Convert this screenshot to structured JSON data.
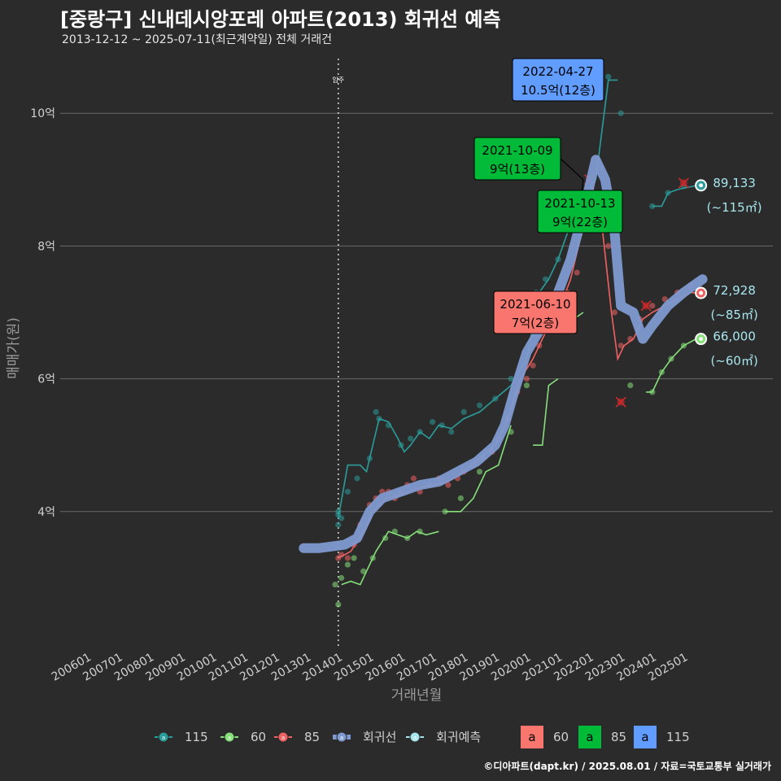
{
  "title": "[중랑구] 신내데시앙포레 아파트(2013) 회귀선 예측",
  "subtitle": "2013-12-12 ~ 2025-07-11(최근계약일) 전체 거래건",
  "credit": "©디아파트(dapt.kr) / 2025.08.01 / 자료=국토교통부 실거래가",
  "colors": {
    "background": "#2b2b2b",
    "s115": "#2a9d9a",
    "s60": "#86e07a",
    "s85": "#f06262",
    "regression": "#7f9ad0",
    "forecast": "#a8e6ee",
    "box60": "#f8766d",
    "box85": "#00ba38",
    "box115": "#619cff"
  },
  "chart_data": {
    "type": "scatter",
    "title": "[중랑구] 신내데시앙포레 아파트(2013) 회귀선 예측",
    "xlabel": "거래년월",
    "ylabel": "매매가(원)",
    "x_tick_labels": [
      "200601",
      "200701",
      "200801",
      "200901",
      "201001",
      "201101",
      "201201",
      "201301",
      "201401",
      "201501",
      "201601",
      "201701",
      "201801",
      "201901",
      "202001",
      "202101",
      "202201",
      "202301",
      "202401",
      "202501"
    ],
    "y_tick_labels": [
      "4억",
      "6억",
      "8억",
      "10억"
    ],
    "y_ticks_value": [
      4,
      6,
      8,
      10
    ],
    "ylim_eok": [
      2,
      10.8
    ],
    "xlim_year": [
      2005.8,
      2026.3
    ],
    "vline": {
      "x_year": 2014.0,
      "label": "입주"
    },
    "grid": true,
    "series": [
      {
        "name": "115",
        "key": "s115",
        "points": [
          [
            2014.0,
            3.8
          ],
          [
            2014.0,
            3.95
          ],
          [
            2014.0,
            4.0
          ],
          [
            2014.1,
            3.9
          ],
          [
            2014.3,
            4.3
          ],
          [
            2014.6,
            4.5
          ],
          [
            2015.0,
            4.8
          ],
          [
            2015.2,
            5.5
          ],
          [
            2015.3,
            5.4
          ],
          [
            2015.6,
            5.3
          ],
          [
            2016.0,
            5.0
          ],
          [
            2016.3,
            5.1
          ],
          [
            2016.6,
            5.2
          ],
          [
            2017.0,
            5.35
          ],
          [
            2017.3,
            5.3
          ],
          [
            2017.6,
            5.2
          ],
          [
            2018.0,
            5.5
          ],
          [
            2018.5,
            5.6
          ],
          [
            2019.0,
            5.7
          ],
          [
            2019.5,
            6.0
          ],
          [
            2020.0,
            6.8
          ],
          [
            2020.3,
            7.3
          ],
          [
            2020.6,
            7.5
          ],
          [
            2021.0,
            7.8
          ],
          [
            2021.4,
            8.3
          ],
          [
            2021.7,
            8.6
          ],
          [
            2022.0,
            9.0
          ],
          [
            2022.3,
            10.5
          ],
          [
            2022.6,
            10.55
          ],
          [
            2023.0,
            10.0
          ],
          [
            2024.0,
            8.6
          ],
          [
            2024.5,
            8.8
          ],
          [
            2025.0,
            8.9
          ]
        ],
        "line": [
          [
            2014.0,
            3.9
          ],
          [
            2014.3,
            4.7
          ],
          [
            2014.7,
            4.7
          ],
          [
            2014.9,
            4.6
          ],
          [
            2015.3,
            5.4
          ],
          [
            2015.6,
            5.35
          ],
          [
            2015.9,
            5.1
          ],
          [
            2016.1,
            4.9
          ],
          [
            2016.3,
            5.0
          ],
          [
            2016.6,
            5.2
          ],
          [
            2016.9,
            5.1
          ],
          [
            2017.2,
            5.3
          ],
          [
            2017.6,
            5.25
          ],
          [
            2018.0,
            5.4
          ],
          [
            2018.5,
            5.5
          ],
          [
            2019.0,
            5.7
          ],
          [
            2019.5,
            5.9
          ],
          [
            2020.0,
            6.3
          ],
          [
            2020.4,
            7.3
          ],
          [
            2020.7,
            7.5
          ],
          [
            2021.0,
            7.8
          ],
          [
            2021.3,
            8.2
          ],
          [
            2021.6,
            8.5
          ],
          [
            2021.9,
            8.8
          ],
          [
            2022.2,
            9.0
          ],
          [
            2022.6,
            10.5
          ],
          [
            2022.9,
            10.5
          ]
        ],
        "line2": [
          [
            2024.0,
            8.6
          ],
          [
            2024.3,
            8.6
          ],
          [
            2024.5,
            8.8
          ],
          [
            2024.8,
            8.85
          ],
          [
            2025.4,
            8.91
          ]
        ]
      },
      {
        "name": "60",
        "key": "s60",
        "points": [
          [
            2013.9,
            2.9
          ],
          [
            2014.0,
            2.6
          ],
          [
            2014.1,
            3.0
          ],
          [
            2014.3,
            3.2
          ],
          [
            2014.5,
            3.3
          ],
          [
            2014.8,
            3.1
          ],
          [
            2015.1,
            3.3
          ],
          [
            2015.5,
            3.6
          ],
          [
            2015.8,
            3.7
          ],
          [
            2016.2,
            3.6
          ],
          [
            2016.6,
            3.7
          ],
          [
            2017.4,
            4.0
          ],
          [
            2017.9,
            4.2
          ],
          [
            2018.5,
            4.6
          ],
          [
            2019.5,
            5.2
          ],
          [
            2020.0,
            5.9
          ],
          [
            2021.0,
            6.9
          ],
          [
            2023.3,
            5.9
          ],
          [
            2024.0,
            5.8
          ],
          [
            2024.3,
            6.1
          ],
          [
            2024.6,
            6.3
          ],
          [
            2025.0,
            6.5
          ]
        ],
        "line": [
          [
            2014.1,
            2.9
          ],
          [
            2014.4,
            2.95
          ],
          [
            2014.7,
            2.9
          ],
          [
            2014.9,
            3.1
          ],
          [
            2015.2,
            3.4
          ],
          [
            2015.6,
            3.7
          ],
          [
            2015.9,
            3.65
          ],
          [
            2016.2,
            3.6
          ],
          [
            2016.5,
            3.7
          ],
          [
            2016.8,
            3.65
          ],
          [
            2017.2,
            3.7
          ]
        ],
        "line3": [
          [
            2017.4,
            4.0
          ],
          [
            2017.9,
            4.0
          ],
          [
            2018.3,
            4.2
          ],
          [
            2018.7,
            4.6
          ],
          [
            2019.1,
            4.7
          ],
          [
            2019.5,
            5.3
          ]
        ],
        "line4": [
          [
            2020.2,
            5.0
          ],
          [
            2020.5,
            5.0
          ],
          [
            2020.7,
            5.9
          ],
          [
            2021.0,
            6.0
          ]
        ],
        "line5": [
          [
            2021.0,
            6.8
          ],
          [
            2021.5,
            6.9
          ],
          [
            2021.8,
            7.0
          ]
        ],
        "line2": [
          [
            2023.8,
            5.8
          ],
          [
            2024.0,
            5.8
          ],
          [
            2024.3,
            6.1
          ],
          [
            2024.6,
            6.3
          ],
          [
            2025.0,
            6.5
          ],
          [
            2025.4,
            6.6
          ]
        ]
      },
      {
        "name": "85",
        "key": "s85",
        "points": [
          [
            2014.0,
            3.3
          ],
          [
            2014.1,
            3.35
          ],
          [
            2014.3,
            3.3
          ],
          [
            2014.5,
            3.5
          ],
          [
            2014.7,
            3.8
          ],
          [
            2015.0,
            4.1
          ],
          [
            2015.2,
            4.2
          ],
          [
            2015.4,
            4.3
          ],
          [
            2015.6,
            4.3
          ],
          [
            2015.8,
            4.2
          ],
          [
            2016.0,
            4.3
          ],
          [
            2016.2,
            4.4
          ],
          [
            2016.4,
            4.5
          ],
          [
            2016.6,
            4.3
          ],
          [
            2016.9,
            4.4
          ],
          [
            2017.2,
            4.5
          ],
          [
            2017.5,
            4.4
          ],
          [
            2017.8,
            4.5
          ],
          [
            2018.0,
            4.6
          ],
          [
            2018.3,
            4.7
          ],
          [
            2018.6,
            4.8
          ],
          [
            2018.9,
            4.9
          ],
          [
            2019.1,
            5.1
          ],
          [
            2019.4,
            5.4
          ],
          [
            2019.7,
            5.8
          ],
          [
            2020.0,
            6.0
          ],
          [
            2020.2,
            6.2
          ],
          [
            2020.4,
            6.5
          ],
          [
            2020.7,
            6.8
          ],
          [
            2021.0,
            7.0
          ],
          [
            2021.3,
            7.3
          ],
          [
            2021.6,
            7.6
          ],
          [
            2021.8,
            8.3
          ],
          [
            2022.0,
            8.7
          ],
          [
            2022.2,
            8.8
          ],
          [
            2022.6,
            8.0
          ],
          [
            2022.8,
            7.0
          ],
          [
            2023.0,
            6.5
          ],
          [
            2023.3,
            6.6
          ],
          [
            2023.6,
            6.9
          ],
          [
            2024.0,
            7.1
          ],
          [
            2024.4,
            7.2
          ],
          [
            2024.8,
            7.3
          ],
          [
            2025.2,
            7.4
          ],
          [
            2025.5,
            7.3
          ]
        ],
        "line": [
          [
            2014.0,
            3.3
          ],
          [
            2014.4,
            3.4
          ],
          [
            2014.8,
            3.7
          ],
          [
            2015.1,
            4.0
          ],
          [
            2015.5,
            4.2
          ],
          [
            2016.0,
            4.25
          ],
          [
            2016.5,
            4.35
          ],
          [
            2017.0,
            4.4
          ],
          [
            2017.5,
            4.45
          ],
          [
            2018.0,
            4.6
          ],
          [
            2018.5,
            4.8
          ],
          [
            2019.0,
            5.0
          ],
          [
            2019.4,
            5.4
          ],
          [
            2019.8,
            6.0
          ],
          [
            2020.2,
            6.3
          ],
          [
            2020.6,
            6.7
          ],
          [
            2021.0,
            7.0
          ],
          [
            2021.4,
            7.5
          ],
          [
            2021.8,
            8.3
          ],
          [
            2022.1,
            8.9
          ],
          [
            2022.4,
            8.3
          ],
          [
            2022.7,
            7.0
          ],
          [
            2022.9,
            6.3
          ],
          [
            2023.1,
            6.5
          ],
          [
            2023.4,
            6.6
          ],
          [
            2023.7,
            6.9
          ],
          [
            2024.0,
            7.0
          ],
          [
            2024.4,
            7.1
          ],
          [
            2024.8,
            7.2
          ],
          [
            2025.2,
            7.3
          ],
          [
            2025.5,
            7.29
          ]
        ],
        "crosses": [
          [
            2022.0,
            9.0
          ],
          [
            2023.0,
            5.65
          ],
          [
            2023.8,
            7.1
          ],
          [
            2025.0,
            8.95
          ]
        ]
      },
      {
        "name": "회귀선",
        "key": "regression",
        "points": [],
        "line": [
          [
            2012.9,
            3.45
          ],
          [
            2013.4,
            3.45
          ],
          [
            2014.2,
            3.5
          ],
          [
            2014.6,
            3.6
          ],
          [
            2015.0,
            4.0
          ],
          [
            2015.4,
            4.2
          ],
          [
            2016.0,
            4.3
          ],
          [
            2016.6,
            4.4
          ],
          [
            2017.2,
            4.45
          ],
          [
            2017.8,
            4.6
          ],
          [
            2018.4,
            4.75
          ],
          [
            2019.0,
            5.0
          ],
          [
            2019.3,
            5.3
          ],
          [
            2019.6,
            5.8
          ],
          [
            2020.0,
            6.4
          ],
          [
            2020.5,
            6.8
          ],
          [
            2021.0,
            7.3
          ],
          [
            2021.4,
            7.8
          ],
          [
            2021.8,
            8.5
          ],
          [
            2022.2,
            9.3
          ],
          [
            2022.5,
            9.0
          ],
          [
            2022.8,
            8.2
          ],
          [
            2023.0,
            7.1
          ],
          [
            2023.4,
            7.0
          ],
          [
            2023.7,
            6.6
          ],
          [
            2024.0,
            6.8
          ],
          [
            2024.5,
            7.1
          ],
          [
            2025.0,
            7.3
          ],
          [
            2025.6,
            7.5
          ]
        ]
      },
      {
        "name": "회귀예측",
        "key": "forecast",
        "points": [],
        "line": []
      }
    ],
    "end_labels": [
      {
        "x_year": 2025.55,
        "y": 8.9133,
        "value": "89,133",
        "area": "(~115㎡)",
        "key": "s115"
      },
      {
        "x_year": 2025.55,
        "y": 7.2928,
        "value": "72,928",
        "area": "(~85㎡)",
        "key": "s85"
      },
      {
        "x_year": 2025.55,
        "y": 6.6,
        "value": "66,000",
        "area": "(~60㎡)",
        "key": "s60"
      }
    ],
    "annotations": [
      {
        "date": "2022-04-27",
        "price": "10.5억(12층)",
        "fill": "box115",
        "x_year": 2022.3,
        "y": 10.5
      },
      {
        "date": "2021-10-09",
        "price": "9억(13층)",
        "fill": "box85",
        "x_year": 2021.8,
        "y": 9.0
      },
      {
        "date": "2021-10-13",
        "price": "9억(22층)",
        "fill": "box85",
        "x_year": 2021.8,
        "y": 9.0
      },
      {
        "date": "2021-06-10",
        "price": "7억(2층)",
        "fill": "box60",
        "x_year": 2021.4,
        "y": 7.0
      }
    ],
    "legend": {
      "placement": "bottom",
      "items": [
        {
          "label": "115",
          "key": "s115"
        },
        {
          "label": "60",
          "key": "s60"
        },
        {
          "label": "85",
          "key": "s85"
        },
        {
          "label": "회귀선",
          "key": "regression"
        },
        {
          "label": "회귀예측",
          "key": "forecast"
        }
      ],
      "boxes": [
        {
          "glyph": "a",
          "label": "60",
          "key": "box60"
        },
        {
          "glyph": "a",
          "label": "85",
          "key": "box85"
        },
        {
          "glyph": "a",
          "label": "115",
          "key": "box115"
        }
      ]
    }
  }
}
